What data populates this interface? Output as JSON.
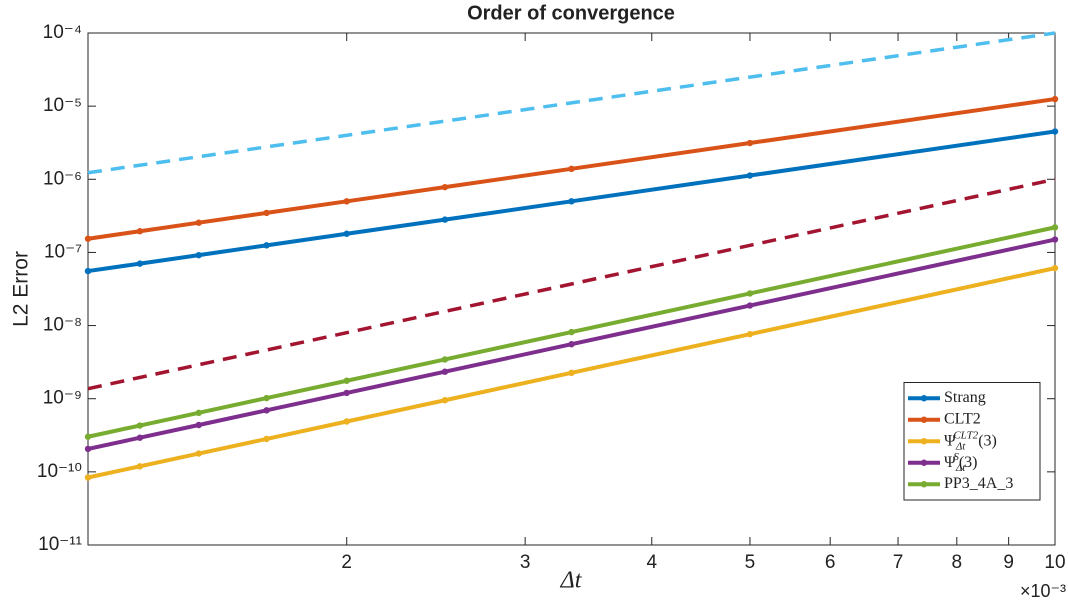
{
  "chart_data": {
    "type": "line",
    "title": "Order of convergence",
    "x_label": "Δt",
    "y_label": "L2 Error",
    "x_exponent_label": "×10⁻³",
    "x_scale": "log",
    "y_scale": "log",
    "grid": false,
    "legend_position": "lower right",
    "x": [
      1.111,
      1.25,
      1.429,
      1.667,
      2,
      2.5,
      3.333,
      5,
      10
    ],
    "xlim": [
      1.111,
      10
    ],
    "xticks": [
      2,
      3,
      4,
      5,
      6,
      7,
      8,
      9,
      10
    ],
    "ylim": [
      1e-11,
      0.0001
    ],
    "yticks": [
      {
        "value": 1e-11,
        "label": "10⁻¹¹"
      },
      {
        "value": 1e-10,
        "label": "10⁻¹⁰"
      },
      {
        "value": 1e-09,
        "label": "10⁻⁹"
      },
      {
        "value": 1e-08,
        "label": "10⁻⁸"
      },
      {
        "value": 1e-07,
        "label": "10⁻⁷"
      },
      {
        "value": 1e-06,
        "label": "10⁻⁶"
      },
      {
        "value": 1e-05,
        "label": "10⁻⁵"
      },
      {
        "value": 0.0001,
        "label": "10⁻⁴"
      }
    ],
    "series": [
      {
        "name": "Strang",
        "color": "#0072bd",
        "values": [
          5.56e-08,
          7.03e-08,
          9.18e-08,
          1.25e-07,
          1.8e-07,
          2.81e-07,
          5e-07,
          1.125e-06,
          4.5e-06
        ]
      },
      {
        "name": "CLT2",
        "color": "#d95319",
        "values": [
          1.54e-07,
          1.95e-07,
          2.55e-07,
          3.47e-07,
          5e-07,
          7.81e-07,
          1.39e-06,
          3.13e-06,
          1.25e-05
        ]
      },
      {
        "name": "ΨΔtCLT2(3)",
        "color": "#edb120",
        "values": [
          8.37e-11,
          1.19e-10,
          1.78e-10,
          2.82e-10,
          4.88e-10,
          9.53e-10,
          2.26e-09,
          7.63e-09,
          6.1e-08
        ]
      },
      {
        "name": "ΨΔtS(3)",
        "color": "#7e2f8e",
        "values": [
          2.06e-10,
          2.93e-10,
          4.37e-10,
          6.94e-10,
          1.2e-09,
          2.34e-09,
          5.56e-09,
          1.88e-08,
          1.5e-07
        ]
      },
      {
        "name": "PP3_4A_3",
        "color": "#77ac30",
        "values": [
          3.02e-10,
          4.3e-10,
          6.41e-10,
          1.02e-09,
          1.76e-09,
          3.44e-09,
          8.15e-09,
          2.75e-08,
          2.2e-07
        ]
      }
    ],
    "reference_lines": [
      {
        "color": "#4dbeee",
        "dashed": true,
        "x": [
          1.111,
          10
        ],
        "values": [
          1.23e-06,
          0.0001
        ]
      },
      {
        "color": "#a2142f",
        "dashed": true,
        "x": [
          1.111,
          10
        ],
        "values": [
          1.37e-09,
          1e-06
        ]
      }
    ]
  }
}
